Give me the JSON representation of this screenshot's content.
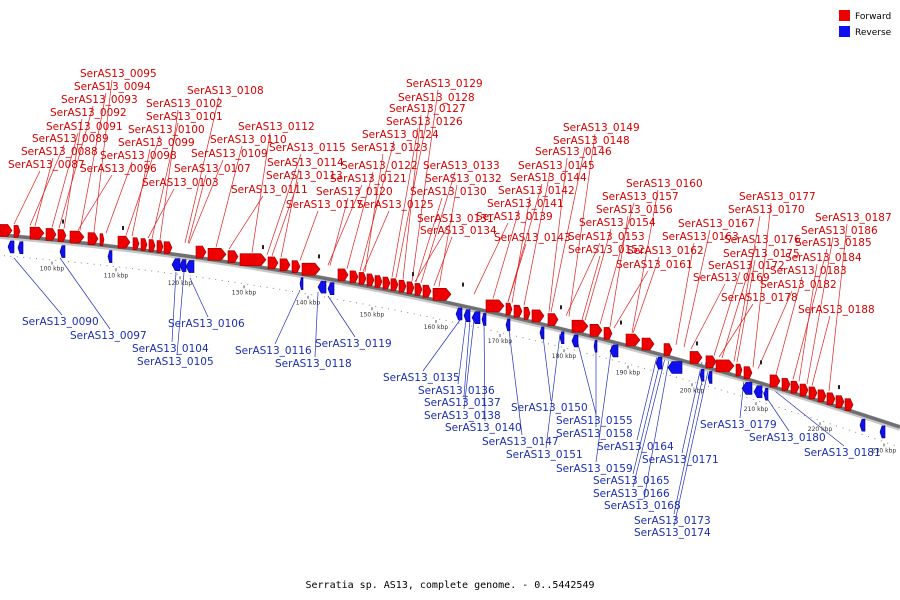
{
  "caption": "Serratia sp. AS13, complete genome. - 0..5442549",
  "legend": {
    "forward": "Forward",
    "reverse": "Reverse"
  },
  "colors": {
    "forward": "#ee0000",
    "reverse": "#1010ee",
    "forward_line": "#dd2222",
    "reverse_line": "#2233bb",
    "axis": "#707070"
  },
  "ticks": [
    "100 kbp",
    "110 kbp",
    "120 kbp",
    "130 kbp",
    "140 kbp",
    "150 kbp",
    "160 kbp",
    "170 kbp",
    "180 kbp",
    "190 kbp",
    "200 kbp",
    "210 kbp",
    "220 kbp",
    "230 kbp"
  ],
  "forward_labels": [
    "SerAS13_0095",
    "SerAS13_0094",
    "SerAS13_0093",
    "SerAS13_0092",
    "SerAS13_0091",
    "SerAS13_0089",
    "SerAS13_0088",
    "SerAS13_0087",
    "SerAS13_0108",
    "SerAS13_0102",
    "SerAS13_0101",
    "SerAS13_0100",
    "SerAS13_0099",
    "SerAS13_0098",
    "SerAS13_0096",
    "SerAS13_0112",
    "SerAS13_0110",
    "SerAS13_0109",
    "SerAS13_0107",
    "SerAS13_0103",
    "SerAS13_0115",
    "SerAS13_0114",
    "SerAS13_0113",
    "SerAS13_0111",
    "SerAS13_0117",
    "SerAS13_0129",
    "SerAS13_0128",
    "SerAS13_0127",
    "SerAS13_0126",
    "SerAS13_0124",
    "SerAS13_0123",
    "SerAS13_0122",
    "SerAS13_0121",
    "SerAS13_0120",
    "SerAS13_0125",
    "SerAS13_0133",
    "SerAS13_0132",
    "SerAS13_0130",
    "SerAS13_0131",
    "SerAS13_0134",
    "SerAS13_0149",
    "SerAS13_0148",
    "SerAS13_0146",
    "SerAS13_0145",
    "SerAS13_0144",
    "SerAS13_0142",
    "SerAS13_0141",
    "SerAS13_0139",
    "SerAS13_0143",
    "SerAS13_0160",
    "SerAS13_0157",
    "SerAS13_0156",
    "SerAS13_0154",
    "SerAS13_0153",
    "SerAS13_0152",
    "SerAS13_0162",
    "SerAS13_0161",
    "SerAS13_0163",
    "SerAS13_0167",
    "SerAS13_0169",
    "SerAS13_0177",
    "SerAS13_0170",
    "SerAS13_0176",
    "SerAS13_0175",
    "SerAS13_0172",
    "SerAS13_0178",
    "SerAS13_0187",
    "SerAS13_0186",
    "SerAS13_0185",
    "SerAS13_0184",
    "SerAS13_0183",
    "SerAS13_0182",
    "SerAS13_0188"
  ],
  "reverse_labels": [
    "SerAS13_0090",
    "SerAS13_0097",
    "SerAS13_0104",
    "SerAS13_0105",
    "SerAS13_0106",
    "SerAS13_0116",
    "SerAS13_0118",
    "SerAS13_0119",
    "SerAS13_0135",
    "SerAS13_0136",
    "SerAS13_0137",
    "SerAS13_0138",
    "SerAS13_0140",
    "SerAS13_0147",
    "SerAS13_0150",
    "SerAS13_0151",
    "SerAS13_0155",
    "SerAS13_0158",
    "SerAS13_0159",
    "SerAS13_0164",
    "SerAS13_0165",
    "SerAS13_0166",
    "SerAS13_0168",
    "SerAS13_0171",
    "SerAS13_0173",
    "SerAS13_0174",
    "SerAS13_0179",
    "SerAS13_0180",
    "SerAS13_0181"
  ]
}
